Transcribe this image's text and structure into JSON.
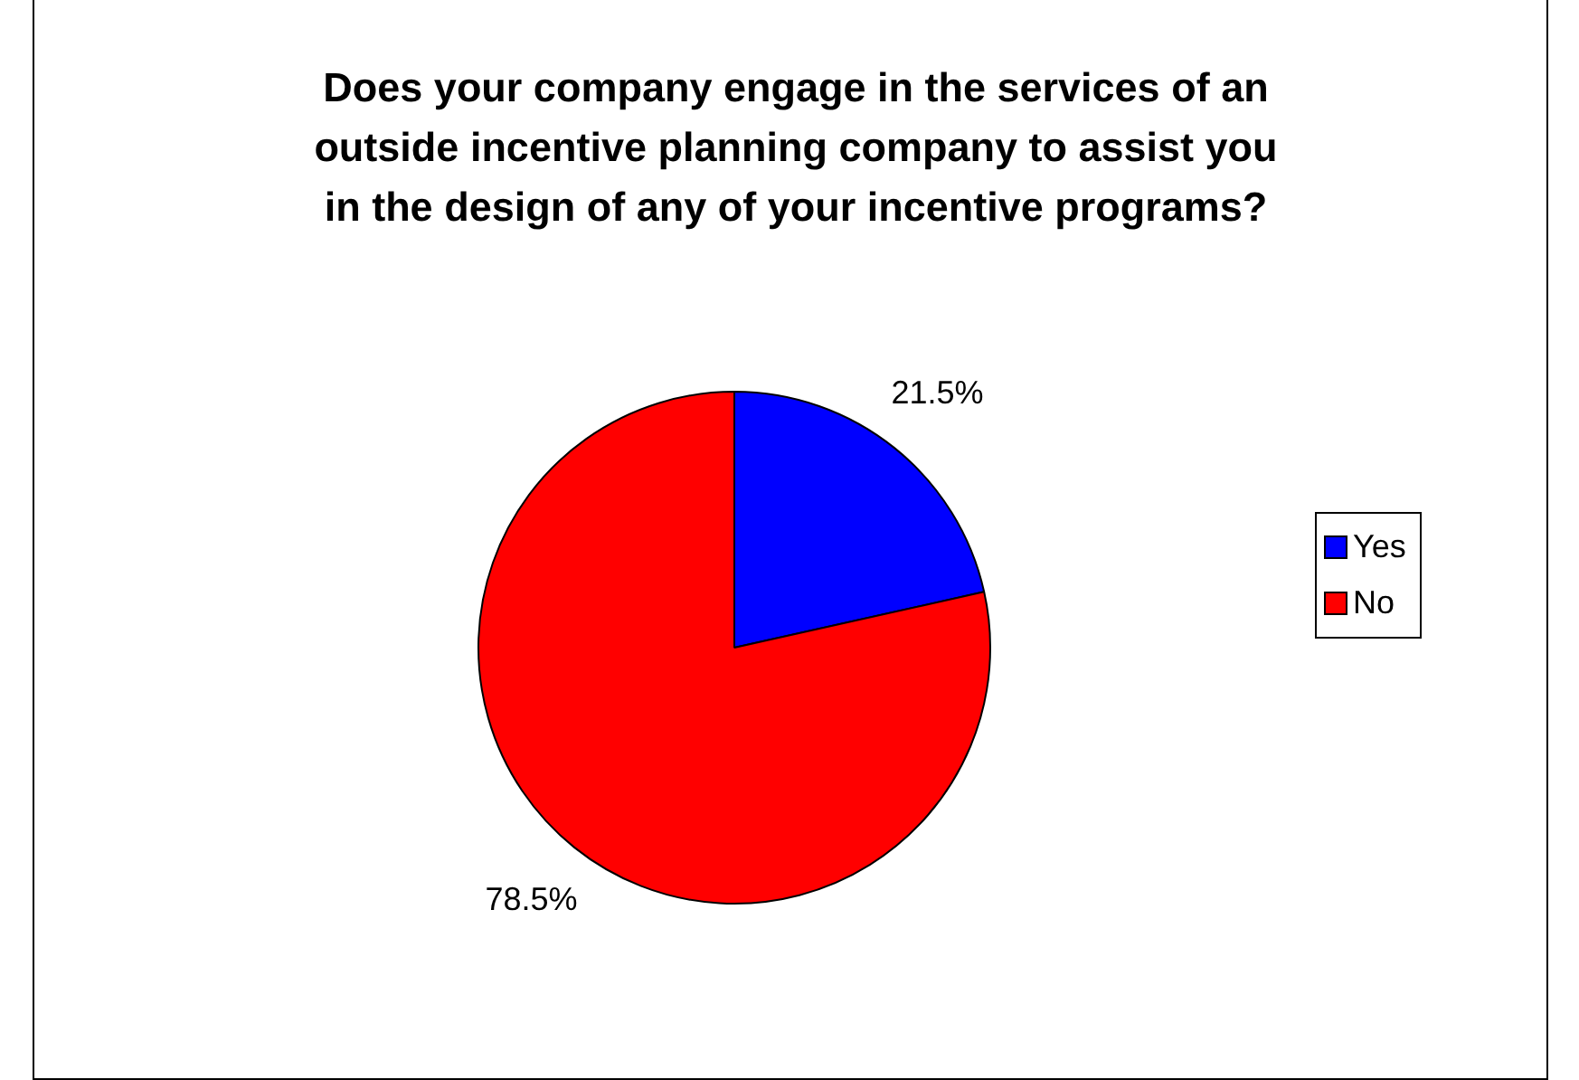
{
  "chart_data": {
    "type": "pie",
    "title": "Does your company engage in the services of an outside incentive planning company to assist you in the design of any of your incentive programs?",
    "categories": [
      "Yes",
      "No"
    ],
    "values": [
      21.5,
      78.5
    ],
    "colors": [
      "#0000ff",
      "#ff0000"
    ],
    "value_labels": [
      "21.5%",
      "78.5%"
    ],
    "legend": "right"
  }
}
